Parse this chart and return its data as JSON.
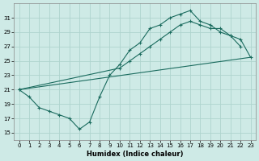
{
  "title": "",
  "xlabel": "Humidex (Indice chaleur)",
  "ylabel": "",
  "bg_color": "#ceeae6",
  "grid_color": "#aed4ce",
  "line_color": "#1a6b5e",
  "xlim": [
    -0.5,
    23.5
  ],
  "ylim": [
    14,
    33
  ],
  "xticks": [
    0,
    1,
    2,
    3,
    4,
    5,
    6,
    7,
    8,
    9,
    10,
    11,
    12,
    13,
    14,
    15,
    16,
    17,
    18,
    19,
    20,
    21,
    22,
    23
  ],
  "yticks": [
    15,
    17,
    19,
    21,
    23,
    25,
    27,
    29,
    31
  ],
  "line_wavy": {
    "x": [
      0,
      1,
      2,
      3,
      4,
      5,
      6,
      7,
      8,
      9,
      10,
      11,
      12,
      13,
      14,
      15,
      16,
      17,
      18,
      19,
      20,
      21,
      22
    ],
    "y": [
      21,
      20,
      18.5,
      18,
      17.5,
      17,
      15.5,
      16.5,
      20,
      23,
      24.5,
      26.5,
      27.5,
      29.5,
      30,
      31,
      31.5,
      32,
      30.5,
      30,
      29,
      28.5,
      27
    ]
  },
  "line_upper": {
    "x": [
      0,
      10,
      11,
      12,
      13,
      14,
      15,
      16,
      17,
      18,
      19,
      20,
      21,
      22,
      23
    ],
    "y": [
      21,
      24,
      25,
      26,
      27,
      28,
      29,
      30,
      30.5,
      30,
      29.5,
      29.5,
      28.5,
      28,
      25.5
    ]
  },
  "line_diag": {
    "x": [
      0,
      23
    ],
    "y": [
      21,
      25.5
    ]
  }
}
